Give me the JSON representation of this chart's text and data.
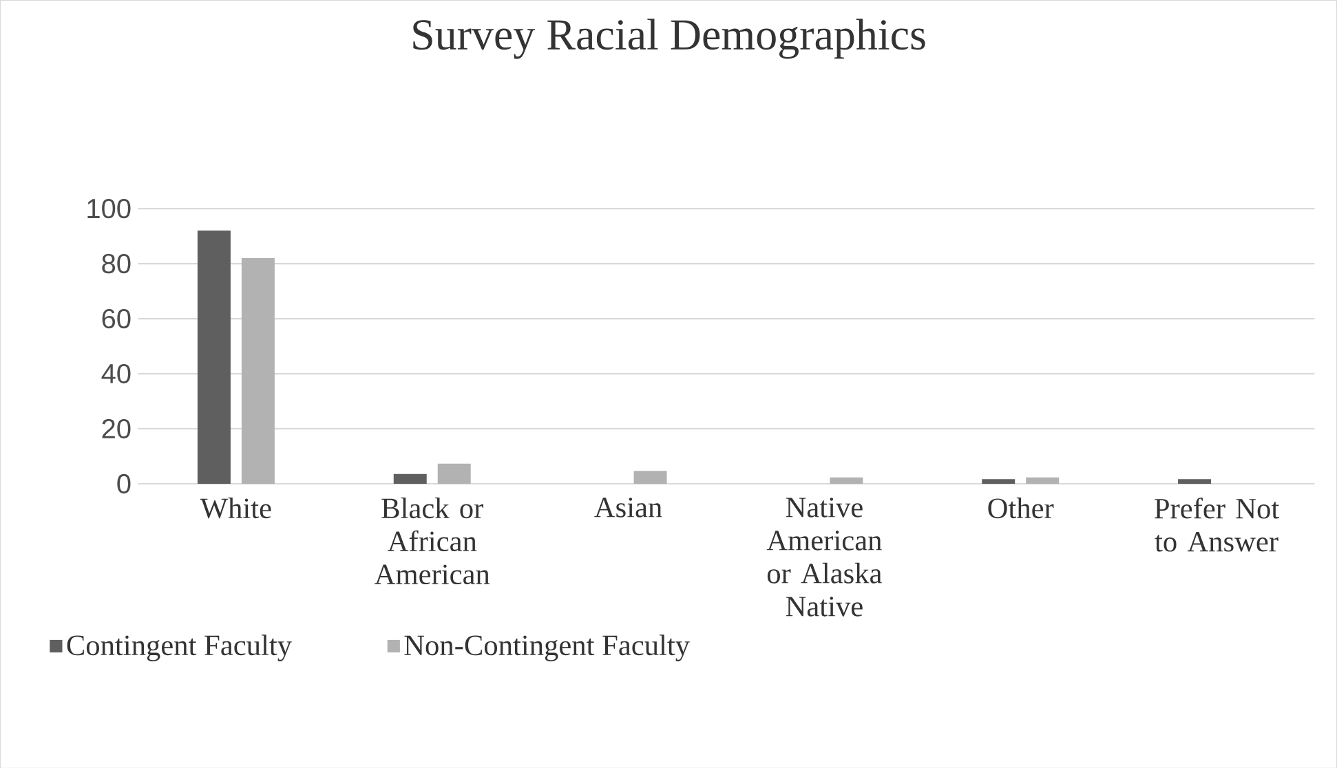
{
  "chart_data": {
    "type": "bar",
    "title": "Survey Racial Demographics",
    "categories": [
      "White",
      "Black or African American",
      "Asian",
      "Native American or Alaska Native",
      "Other",
      "Prefer Not to Answer"
    ],
    "series": [
      {
        "name": "Contingent Faculty",
        "color": "#5f5f5f",
        "values": [
          92,
          3.6,
          0,
          0,
          1.7,
          1.7
        ]
      },
      {
        "name": "Non-Contingent Faculty",
        "color": "#b2b2b2",
        "values": [
          82,
          7.3,
          4.7,
          2.3,
          2.3,
          0
        ]
      }
    ],
    "ylim": [
      0,
      100
    ],
    "yticks": [
      0,
      20,
      40,
      60,
      80,
      100
    ],
    "grid": "y",
    "legend": "bottom left"
  }
}
